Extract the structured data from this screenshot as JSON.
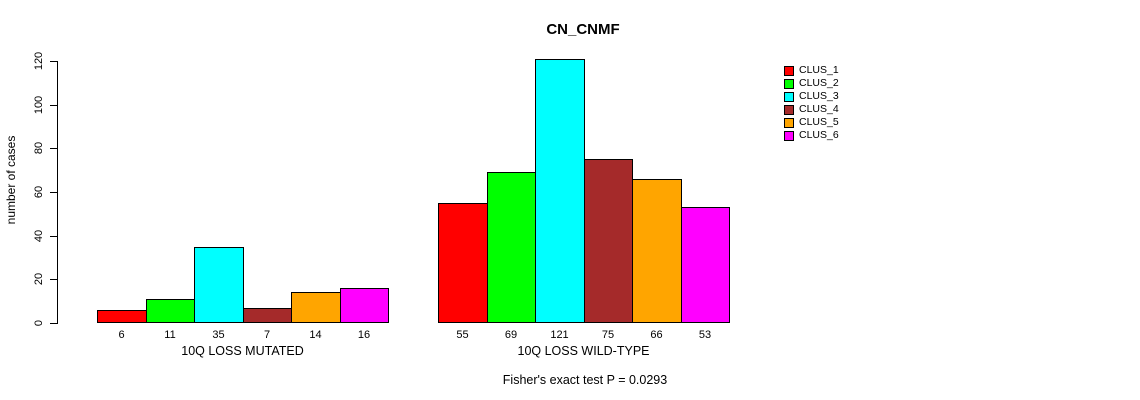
{
  "chart_data": {
    "type": "bar",
    "title": "CN_CNMF",
    "ylabel": "number of cases",
    "ylim": [
      0,
      120
    ],
    "yticks": [
      0,
      20,
      40,
      60,
      80,
      100,
      120
    ],
    "grid": false,
    "legend_position": "right",
    "series": [
      {
        "name": "CLUS_1",
        "color": "#FF0000",
        "values": [
          6,
          55
        ]
      },
      {
        "name": "CLUS_2",
        "color": "#00FF00",
        "values": [
          11,
          69
        ]
      },
      {
        "name": "CLUS_3",
        "color": "#00FFFF",
        "values": [
          35,
          121
        ]
      },
      {
        "name": "CLUS_4",
        "color": "#A52A2A",
        "values": [
          7,
          75
        ]
      },
      {
        "name": "CLUS_5",
        "color": "#FFA500",
        "values": [
          14,
          66
        ]
      },
      {
        "name": "CLUS_6",
        "color": "#FF00FF",
        "values": [
          16,
          53
        ]
      }
    ],
    "groups": [
      {
        "label": "10Q LOSS MUTATED",
        "values": [
          6,
          11,
          35,
          7,
          14,
          16
        ]
      },
      {
        "label": "10Q LOSS WILD-TYPE",
        "values": [
          55,
          69,
          121,
          75,
          66,
          53
        ]
      }
    ],
    "annotation": "Fisher's exact test P = 0.0293"
  }
}
